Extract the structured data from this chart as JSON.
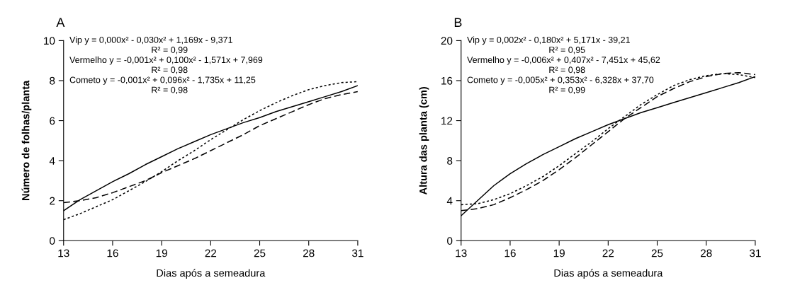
{
  "chart_data": [
    {
      "type": "line",
      "title": "A",
      "xlabel": "Dias após a semeadura",
      "ylabel": "Número de folhas/planta",
      "x": [
        13,
        14,
        15,
        16,
        17,
        18,
        19,
        20,
        21,
        22,
        23,
        24,
        25,
        26,
        27,
        28,
        29,
        30,
        31
      ],
      "xlim": [
        13,
        31
      ],
      "xticks": [
        13,
        16,
        19,
        22,
        25,
        28,
        31
      ],
      "ylim": [
        0,
        10
      ],
      "yticks": [
        0,
        2,
        4,
        6,
        8,
        10
      ],
      "grid": false,
      "legend": false,
      "marker": "none",
      "annotations": [
        "Vip y = 0,000x² - 0,030x² + 1,169x - 9,371",
        "R² = 0,99",
        "Vermelho y = -0,001x² + 0,100x² - 1,571x + 7,969",
        "R² = 0,98",
        "Cometo y = -0,001x² + 0,096x² - 1,735x + 11,25",
        "R² = 0,98"
      ],
      "series": [
        {
          "color": "#000000",
          "line_style": "solid",
          "values": [
            1.5,
            2.05,
            2.5,
            2.95,
            3.35,
            3.8,
            4.2,
            4.6,
            4.95,
            5.3,
            5.6,
            5.9,
            6.15,
            6.45,
            6.7,
            6.95,
            7.2,
            7.45,
            7.75
          ]
        },
        {
          "color": "#000000",
          "line_style": "dashed",
          "values": [
            1.9,
            2.0,
            2.15,
            2.4,
            2.7,
            3.0,
            3.4,
            3.75,
            4.1,
            4.5,
            4.9,
            5.3,
            5.75,
            6.1,
            6.45,
            6.8,
            7.1,
            7.3,
            7.45
          ]
        },
        {
          "color": "#000000",
          "line_style": "dotted",
          "values": [
            1.05,
            1.35,
            1.7,
            2.05,
            2.5,
            2.95,
            3.45,
            4.0,
            4.5,
            5.05,
            5.55,
            6.05,
            6.5,
            6.9,
            7.25,
            7.55,
            7.75,
            7.9,
            7.95
          ]
        }
      ]
    },
    {
      "type": "line",
      "title": "B",
      "xlabel": "Dias após a semeadura",
      "ylabel": "Altura das planta (cm)",
      "x": [
        13,
        14,
        15,
        16,
        17,
        18,
        19,
        20,
        21,
        22,
        23,
        24,
        25,
        26,
        27,
        28,
        29,
        30,
        31
      ],
      "xlim": [
        13,
        31
      ],
      "xticks": [
        13,
        16,
        19,
        22,
        25,
        28,
        31
      ],
      "ylim": [
        0,
        20
      ],
      "yticks": [
        0,
        4,
        8,
        12,
        16,
        20
      ],
      "grid": false,
      "legend": false,
      "marker": "none",
      "annotations": [
        "Vip y = 0,002x² - 0,180x² + 5,171x - 39,21",
        "R² = 0,95",
        "Vermelho y = -0,006x² + 0,407x² - 7,451x + 45,62",
        "R² = 0,98",
        "Cometo y = -0,005x² + 0,353x² - 6,328x + 37,70",
        "R² = 0,99"
      ],
      "series": [
        {
          "color": "#000000",
          "line_style": "solid",
          "values": [
            2.5,
            4.0,
            5.5,
            6.7,
            7.7,
            8.6,
            9.4,
            10.2,
            10.9,
            11.6,
            12.2,
            12.8,
            13.3,
            13.8,
            14.3,
            14.8,
            15.3,
            15.8,
            16.4
          ]
        },
        {
          "color": "#000000",
          "line_style": "dashed",
          "values": [
            3.0,
            3.2,
            3.6,
            4.3,
            5.1,
            6.0,
            7.1,
            8.3,
            9.6,
            10.9,
            12.2,
            13.3,
            14.4,
            15.2,
            15.9,
            16.4,
            16.7,
            16.8,
            16.6
          ]
        },
        {
          "color": "#000000",
          "line_style": "dotted",
          "values": [
            3.6,
            3.7,
            4.1,
            4.7,
            5.5,
            6.4,
            7.5,
            8.7,
            9.9,
            11.2,
            12.4,
            13.6,
            14.6,
            15.5,
            16.1,
            16.5,
            16.7,
            16.6,
            16.3
          ]
        }
      ]
    }
  ]
}
